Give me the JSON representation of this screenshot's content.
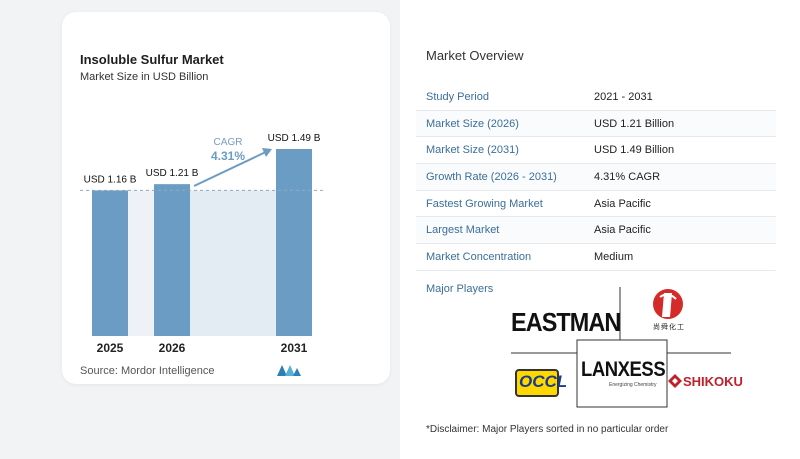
{
  "chart_data": {
    "type": "bar",
    "title": "Insoluble Sulfur Market",
    "subtitle": "Market Size in USD Billion",
    "categories": [
      "2025",
      "2026",
      "2031"
    ],
    "values": [
      1.16,
      1.21,
      1.49
    ],
    "value_labels": [
      "USD 1.16 B",
      "USD 1.21 B",
      "USD 1.49 B"
    ],
    "cagr_label": "CAGR",
    "cagr_value": "4.31%",
    "colors": {
      "bar": "#6b9cc4",
      "bar_dark": "#4d7fa8",
      "shade": "#e3ebf3",
      "arrow": "#6b9cc4",
      "cagr": "#6b9cc4"
    },
    "grid": false
  },
  "source": "Source:  Mordor Intelligence",
  "overview": {
    "title": "Market Overview",
    "rows": [
      {
        "key": "Study Period",
        "value": "2021 - 2031"
      },
      {
        "key": "Market Size (2026)",
        "value": "USD 1.21 Billion"
      },
      {
        "key": "Market Size (2031)",
        "value": "USD 1.49 Billion"
      },
      {
        "key": "Growth Rate (2026 - 2031)",
        "value": "4.31% CAGR"
      },
      {
        "key": "Fastest Growing Market",
        "value": "Asia Pacific"
      },
      {
        "key": "Largest Market",
        "value": "Asia Pacific"
      },
      {
        "key": "Market Concentration",
        "value": "Medium"
      }
    ]
  },
  "players": {
    "title": "Major Players",
    "logos": {
      "eastman": "EASTMAN",
      "lanxess": "LANXESS",
      "lanxess_tag": "Energizing Chemistry",
      "occl": "OCCL",
      "shikoku": "SHIKOKU",
      "chinese": "尚舜化工"
    }
  },
  "disclaimer": "*Disclaimer: Major Players sorted in no particular order"
}
